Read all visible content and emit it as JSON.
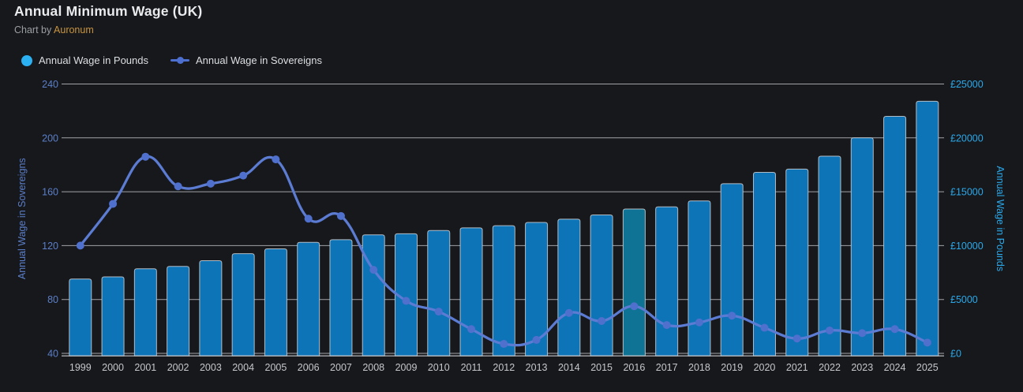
{
  "header": {
    "title": "Annual Minimum Wage (UK)",
    "subtitle_prefix": "Chart by ",
    "subtitle_link": "Auronum"
  },
  "legend": {
    "items": [
      {
        "label": "Annual Wage in Pounds",
        "marker": "circle-icon",
        "color": "#2bb0f2"
      },
      {
        "label": "Annual Wage in Sovereigns",
        "marker": "line-dot-icon",
        "color": "#4c6fd0"
      }
    ]
  },
  "chart_data": {
    "type": "bar",
    "subtype": "bar+line dual-axis",
    "title": "Annual Minimum Wage (UK)",
    "categories": [
      "1999",
      "2000",
      "2001",
      "2002",
      "2003",
      "2004",
      "2005",
      "2006",
      "2007",
      "2008",
      "2009",
      "2010",
      "2011",
      "2012",
      "2013",
      "2014",
      "2015",
      "2016",
      "2017",
      "2018",
      "2019",
      "2020",
      "2021",
      "2022",
      "2023",
      "2024",
      "2025"
    ],
    "series": [
      {
        "name": "Annual Wage in Pounds",
        "type": "bar",
        "axis": "right",
        "values": [
          6900,
          7100,
          7850,
          8070,
          8600,
          9250,
          9700,
          10300,
          10550,
          11000,
          11100,
          11400,
          11650,
          11850,
          12150,
          12450,
          12850,
          13400,
          13600,
          14150,
          15750,
          16800,
          17100,
          18300,
          20000,
          22000,
          23400
        ]
      },
      {
        "name": "Annual Wage in Sovereigns",
        "type": "line",
        "axis": "left",
        "values": [
          120,
          151,
          186,
          164,
          166,
          172,
          184,
          140,
          142,
          102,
          79,
          71,
          58,
          47,
          50,
          70,
          64,
          75,
          61,
          63,
          68,
          59,
          51,
          57,
          55,
          58,
          48
        ]
      }
    ],
    "left_axis": {
      "title": "Annual Wage in Sovereigns",
      "min": 40,
      "max": 240,
      "step": 40,
      "ticks": [
        "240",
        "200",
        "160",
        "120",
        "80",
        "40"
      ]
    },
    "right_axis": {
      "title": "Annual Wage in Pounds",
      "min": 0,
      "max": 25000,
      "step": 5000,
      "ticks": [
        "£25000",
        "£20000",
        "£15000",
        "£10000",
        "£5000",
        "£0"
      ]
    },
    "grid": true,
    "legend_position": "top-left",
    "highlight_year": "2016",
    "colors": {
      "background": "#17181c",
      "bar": "#0d74b8",
      "bar_highlight": "#0e7394",
      "bar_border": "#cdd0d3",
      "line": "#5b7cd2",
      "marker": "#4f70cc",
      "grid": "#b9bcc0",
      "axis_line": "#c6c8cb",
      "left_axis_label": "#5b7fc9",
      "right_axis_label": "#2aa9ea",
      "x_label": "#c5c7cb"
    }
  }
}
